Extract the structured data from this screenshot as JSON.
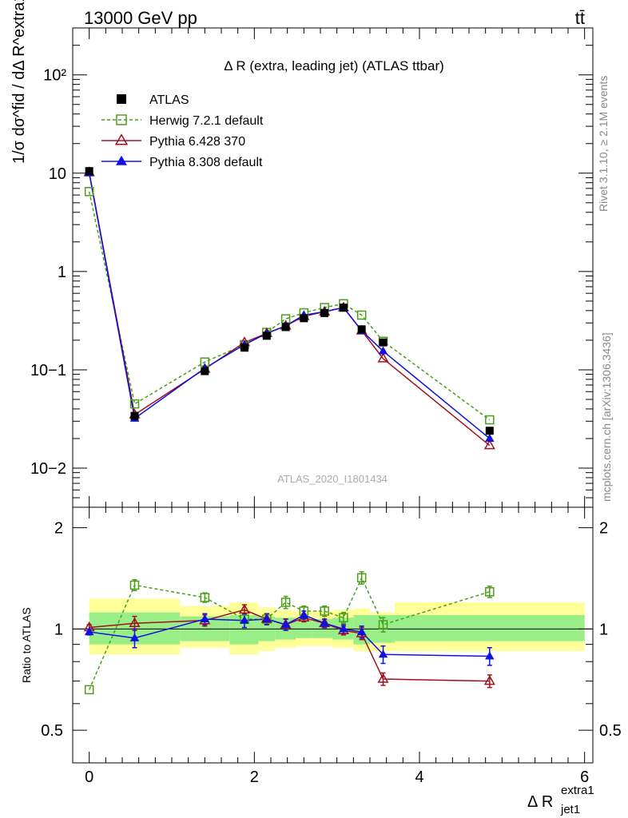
{
  "header": {
    "energy_label": "13000 GeV pp",
    "process_label": "tt̄"
  },
  "side_labels": {
    "rivet": "Rivet 3.1.10, ≥ 2.1M events",
    "mcplots": "mcplots.cern.ch [arXiv:1306.3436]"
  },
  "watermark": "ATLAS_2020_I1801434",
  "chart_data": {
    "type": "line",
    "title": "Δ R (extra, leading jet) (ATLAS ttbar)",
    "ylabel_main": "1/σ dσ^fid / dΔ R^extra1_jet1",
    "ylabel_ratio": "Ratio to ATLAS",
    "xlabel": "Δ R",
    "xlabel_sup": "extra1",
    "xlabel_sub": "jet1",
    "xlim": [
      -0.2,
      6.1
    ],
    "ylim_main": [
      0.004,
      300
    ],
    "yscale_main": "log",
    "ylim_ratio": [
      0.4,
      2.3
    ],
    "yscale_ratio": "log",
    "x_ticks": [
      "0",
      "2",
      "4",
      "6"
    ],
    "y_ticks_main": [
      "10−2",
      "10−1",
      "1",
      "10",
      "10²"
    ],
    "y_ticks_ratio": [
      "0.5",
      "1",
      "2"
    ],
    "legend_position": "top-left",
    "bins": [
      {
        "lo": 0.0,
        "hi": 0.2
      },
      {
        "lo": 0.2,
        "hi": 1.1
      },
      {
        "lo": 1.1,
        "hi": 1.7
      },
      {
        "lo": 1.7,
        "hi": 2.05
      },
      {
        "lo": 2.05,
        "hi": 2.25
      },
      {
        "lo": 2.25,
        "hi": 2.5
      },
      {
        "lo": 2.5,
        "hi": 2.7
      },
      {
        "lo": 2.7,
        "hi": 2.95
      },
      {
        "lo": 2.95,
        "hi": 3.2
      },
      {
        "lo": 3.2,
        "hi": 3.4
      },
      {
        "lo": 3.4,
        "hi": 3.7
      },
      {
        "lo": 3.7,
        "hi": 6.0
      }
    ],
    "ratio_bands": [
      {
        "lo": 0.0,
        "hi": 1.1,
        "stat": [
          0.9,
          1.12
        ],
        "total": [
          0.84,
          1.23
        ]
      },
      {
        "lo": 1.1,
        "hi": 1.7,
        "stat": [
          0.92,
          1.09
        ],
        "total": [
          0.88,
          1.17
        ]
      },
      {
        "lo": 1.7,
        "hi": 2.05,
        "stat": [
          0.9,
          1.1
        ],
        "total": [
          0.84,
          1.2
        ]
      },
      {
        "lo": 2.05,
        "hi": 2.25,
        "stat": [
          0.92,
          1.09
        ],
        "total": [
          0.86,
          1.16
        ]
      },
      {
        "lo": 2.25,
        "hi": 2.5,
        "stat": [
          0.93,
          1.08
        ],
        "total": [
          0.88,
          1.14
        ]
      },
      {
        "lo": 2.5,
        "hi": 2.7,
        "stat": [
          0.94,
          1.07
        ],
        "total": [
          0.89,
          1.13
        ]
      },
      {
        "lo": 2.7,
        "hi": 2.95,
        "stat": [
          0.94,
          1.07
        ],
        "total": [
          0.89,
          1.13
        ]
      },
      {
        "lo": 2.95,
        "hi": 3.2,
        "stat": [
          0.93,
          1.08
        ],
        "total": [
          0.88,
          1.14
        ]
      },
      {
        "lo": 3.2,
        "hi": 3.4,
        "stat": [
          0.9,
          1.1
        ],
        "total": [
          0.86,
          1.15
        ]
      },
      {
        "lo": 3.4,
        "hi": 3.7,
        "stat": [
          0.91,
          1.1
        ],
        "total": [
          0.86,
          1.12
        ]
      },
      {
        "lo": 3.7,
        "hi": 6.0,
        "stat": [
          0.92,
          1.1
        ],
        "total": [
          0.86,
          1.2
        ]
      }
    ],
    "series": [
      {
        "name": "ATLAS",
        "color": "#000000",
        "marker": "square-filled",
        "dash": "none",
        "x": [
          0.0,
          0.55,
          1.4,
          1.88,
          2.15,
          2.38,
          2.6,
          2.85,
          3.08,
          3.3,
          3.56,
          4.85
        ],
        "values": [
          10.5,
          0.034,
          0.097,
          0.168,
          0.222,
          0.272,
          0.335,
          0.378,
          0.428,
          0.258,
          0.19,
          0.024
        ],
        "ratio": [
          1,
          1,
          1,
          1,
          1,
          1,
          1,
          1,
          1,
          1,
          1,
          1
        ]
      },
      {
        "name": "Herwig 7.2.1 default",
        "color": "#4a9e1a",
        "marker": "square-open",
        "dash": "4,3",
        "x": [
          0.0,
          0.55,
          1.4,
          1.88,
          2.15,
          2.38,
          2.6,
          2.85,
          3.08,
          3.3,
          3.56,
          4.85
        ],
        "values": [
          6.5,
          0.045,
          0.12,
          0.18,
          0.24,
          0.33,
          0.38,
          0.43,
          0.47,
          0.36,
          0.195,
          0.031
        ],
        "ratio": [
          0.66,
          1.35,
          1.24,
          1.07,
          1.07,
          1.2,
          1.13,
          1.13,
          1.08,
          1.42,
          1.03,
          1.29
        ],
        "ratio_err": [
          0.0,
          0.05,
          0.04,
          0.03,
          0.04,
          0.05,
          0.04,
          0.04,
          0.04,
          0.06,
          0.05,
          0.05
        ]
      },
      {
        "name": "Pythia 6.428 370",
        "color": "#a01020",
        "marker": "triangle-open",
        "dash": "none",
        "x": [
          0.0,
          0.55,
          1.4,
          1.88,
          2.15,
          2.38,
          2.6,
          2.85,
          3.08,
          3.3,
          3.56,
          4.85
        ],
        "values": [
          10.2,
          0.035,
          0.102,
          0.19,
          0.235,
          0.28,
          0.35,
          0.39,
          0.43,
          0.25,
          0.13,
          0.017
        ],
        "ratio": [
          1.01,
          1.04,
          1.06,
          1.14,
          1.07,
          1.03,
          1.08,
          1.04,
          0.99,
          0.97,
          0.71,
          0.7
        ],
        "ratio_err": [
          0.02,
          0.05,
          0.04,
          0.04,
          0.04,
          0.04,
          0.03,
          0.03,
          0.03,
          0.04,
          0.03,
          0.03
        ]
      },
      {
        "name": "Pythia 8.308 default",
        "color": "#1010e0",
        "marker": "triangle-filled",
        "dash": "none",
        "x": [
          0.0,
          0.55,
          1.4,
          1.88,
          2.15,
          2.38,
          2.6,
          2.85,
          3.08,
          3.3,
          3.56,
          4.85
        ],
        "values": [
          10.0,
          0.032,
          0.104,
          0.18,
          0.235,
          0.28,
          0.36,
          0.39,
          0.43,
          0.25,
          0.155,
          0.02
        ],
        "ratio": [
          0.98,
          0.94,
          1.07,
          1.06,
          1.07,
          1.03,
          1.1,
          1.04,
          1.0,
          0.98,
          0.84,
          0.83
        ],
        "ratio_err": [
          0.02,
          0.06,
          0.04,
          0.05,
          0.04,
          0.04,
          0.03,
          0.03,
          0.03,
          0.04,
          0.05,
          0.05
        ]
      }
    ]
  }
}
